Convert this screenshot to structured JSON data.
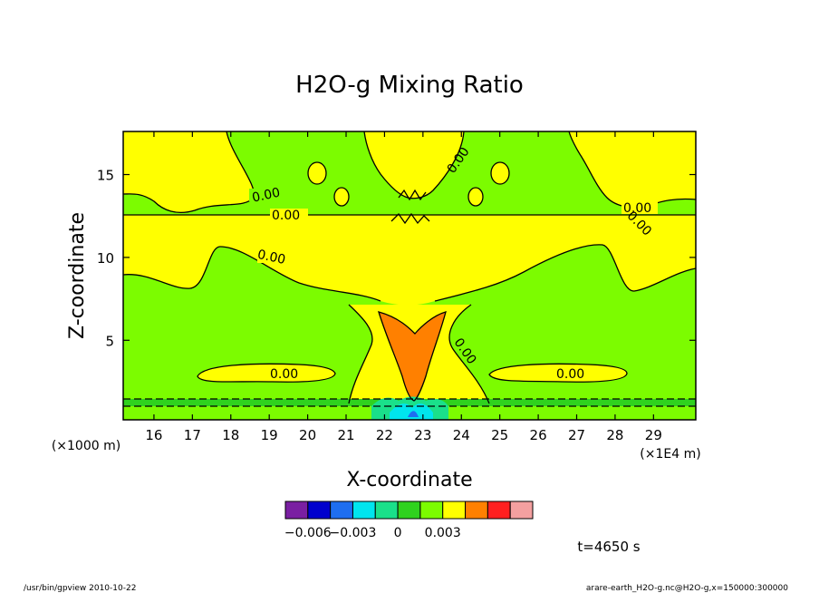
{
  "chart_data": {
    "type": "heatmap",
    "title": "H2O-g Mixing Ratio",
    "xlabel": "X-coordinate",
    "ylabel": "Z-coordinate",
    "x_unit_left": "(×1000 m)",
    "x_unit_right": "(×1E4 m)",
    "xlim": [
      15.2,
      30.1
    ],
    "ylim": [
      0.2,
      17.6
    ],
    "x_ticks": [
      16,
      17,
      18,
      19,
      20,
      21,
      22,
      23,
      24,
      25,
      26,
      27,
      28,
      29
    ],
    "y_ticks": [
      5,
      10,
      15
    ],
    "contour_labels": [
      "0.00",
      "0.00",
      "0.00",
      "0.00",
      "0.00",
      "0.00",
      "0.00",
      "0.00",
      "0.00"
    ],
    "colorbar": {
      "colors": [
        "#7a1fa2",
        "#0000cd",
        "#1e6ef0",
        "#00e5ee",
        "#1ae08a",
        "#2fd21e",
        "#7cfc00",
        "#ffff00",
        "#ff8000",
        "#ff2020",
        "#f4a0a0"
      ],
      "tick_labels": [
        "−0.006",
        "−0.003",
        "0",
        "0.003"
      ],
      "tick_values": [
        -0.006,
        -0.003,
        0,
        0.003
      ]
    },
    "time_label": "t=4650 s"
  },
  "footer": {
    "left": "/usr/bin/gpview  2010-10-22",
    "right": "arare-earth_H2O-g.nc@H2O-g,x=150000:300000"
  }
}
